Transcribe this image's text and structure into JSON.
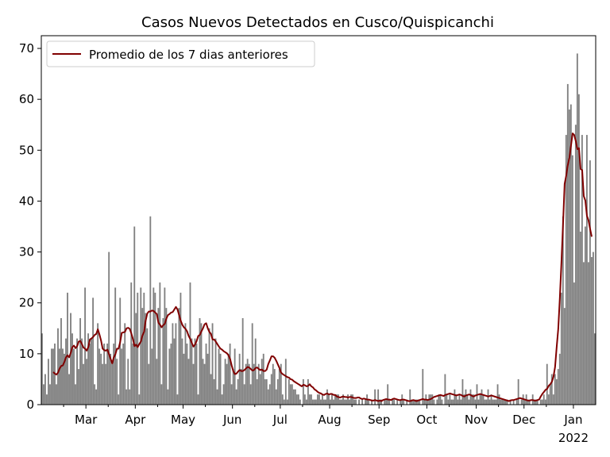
{
  "chart_data": {
    "type": "bar",
    "title": "Casos Nuevos Detectados en Cusco/Quispicanchi",
    "xlabel": "",
    "ylabel": "",
    "ylim": [
      0,
      72.5
    ],
    "y_ticks": [
      0,
      10,
      20,
      30,
      40,
      50,
      60,
      70
    ],
    "x_ticks": [
      "Mar",
      "Apr",
      "May",
      "Jun",
      "Jul",
      "Aug",
      "Sep",
      "Oct",
      "Nov",
      "Dec",
      "Jan"
    ],
    "x_year_label": "2022",
    "grid": false,
    "legend_position": "upper-left",
    "start_date": "2021-02-01",
    "series": [
      {
        "kind": "bar",
        "color": "#808080",
        "values": [
          14,
          4,
          6,
          2,
          9,
          4,
          11,
          11,
          12,
          4,
          15,
          11,
          17,
          11,
          10,
          13,
          22,
          6,
          18,
          14,
          11,
          4,
          13,
          7,
          17,
          13,
          8,
          23,
          9,
          14,
          12,
          13,
          21,
          4,
          3,
          16,
          11,
          10,
          8,
          12,
          8,
          12,
          30,
          10,
          8,
          12,
          23,
          9,
          2,
          21,
          11,
          12,
          16,
          3,
          9,
          3,
          24,
          12,
          35,
          18,
          22,
          2,
          23,
          19,
          22,
          18,
          15,
          8,
          37,
          11,
          23,
          22,
          9,
          19,
          24,
          4,
          17,
          23,
          19,
          3,
          11,
          12,
          16,
          13,
          16,
          2,
          19,
          22,
          13,
          10,
          16,
          12,
          9,
          24,
          13,
          8,
          13,
          12,
          2,
          17,
          16,
          9,
          8,
          12,
          10,
          15,
          6,
          16,
          5,
          13,
          3,
          11,
          10,
          2,
          4,
          9,
          8,
          10,
          12,
          4,
          7,
          11,
          3,
          5,
          10,
          7,
          17,
          4,
          8,
          9,
          8,
          4,
          16,
          8,
          13,
          5,
          8,
          6,
          9,
          10,
          5,
          5,
          3,
          4,
          6,
          8,
          7,
          3,
          5,
          7,
          8,
          2,
          1,
          9,
          1,
          5,
          4,
          4,
          3,
          3,
          2,
          2,
          1,
          0,
          5,
          2,
          1,
          5,
          2,
          2,
          1,
          1,
          1,
          2,
          2,
          1,
          2,
          1,
          1,
          3,
          2,
          1,
          2,
          1,
          2,
          2,
          2,
          1,
          1,
          2,
          1,
          1,
          2,
          1,
          2,
          2,
          1,
          1,
          0,
          1,
          0,
          1,
          0,
          1,
          2,
          1,
          0,
          1,
          0,
          3,
          0,
          3,
          1,
          1,
          0,
          1,
          1,
          4,
          1,
          0,
          1,
          1,
          0,
          1,
          0,
          1,
          2,
          1,
          0,
          1,
          0,
          3,
          1,
          1,
          1,
          1,
          1,
          1,
          0,
          7,
          1,
          2,
          1,
          2,
          2,
          2,
          1,
          0,
          1,
          2,
          2,
          1,
          0,
          6,
          2,
          1,
          2,
          1,
          1,
          3,
          2,
          1,
          2,
          1,
          5,
          2,
          3,
          2,
          1,
          3,
          2,
          2,
          1,
          4,
          1,
          2,
          3,
          2,
          1,
          1,
          3,
          1,
          2,
          1,
          1,
          1,
          4,
          2,
          1,
          1,
          1,
          1,
          1,
          0,
          1,
          0,
          1,
          0,
          1,
          5,
          0,
          1,
          2,
          1,
          2,
          1,
          1,
          0,
          2,
          1,
          1,
          1,
          0,
          1,
          1,
          2,
          1,
          8,
          2,
          4,
          6,
          2,
          6,
          5,
          7,
          10,
          22,
          37,
          19,
          53,
          63,
          58,
          59,
          49,
          24,
          55,
          69,
          61,
          34,
          53,
          28,
          35,
          53,
          28,
          48,
          29,
          30,
          14
        ]
      },
      {
        "kind": "line",
        "name": "Promedio de los 7 dias anteriores",
        "color": "#800000",
        "values": [
          6.4,
          6.1,
          5.9,
          6.3,
          7.1,
          7.6,
          7.7,
          8.4,
          9.3,
          9.7,
          9.3,
          10.2,
          11.3,
          11.6,
          11.1,
          11.5,
          12.4,
          12.5,
          11.9,
          11.2,
          11.0,
          10.6,
          11.3,
          12.8,
          13.0,
          13.3,
          13.7,
          13.9,
          14.8,
          13.8,
          12.6,
          11.0,
          10.7,
          10.6,
          10.8,
          9.9,
          9.0,
          8.1,
          9.3,
          9.9,
          11.0,
          11.0,
          12.3,
          14.1,
          14.2,
          14.3,
          15.0,
          15.1,
          14.9,
          14.0,
          12.9,
          11.5,
          11.8,
          11.3,
          11.9,
          12.4,
          13.6,
          14.3,
          16.5,
          17.9,
          18.3,
          18.3,
          18.5,
          18.4,
          18.1,
          17.8,
          16.1,
          15.7,
          15.2,
          15.6,
          15.9,
          16.9,
          17.6,
          17.8,
          18.1,
          18.2,
          18.7,
          19.2,
          18.7,
          17.6,
          16.5,
          15.7,
          15.2,
          14.9,
          14.4,
          13.5,
          12.9,
          12.1,
          11.4,
          11.8,
          12.5,
          13.5,
          13.7,
          14.4,
          15.0,
          15.8,
          16.0,
          15.0,
          14.3,
          13.9,
          12.8,
          12.8,
          12.4,
          11.9,
          11.4,
          11.0,
          10.8,
          10.5,
          10.3,
          10.1,
          9.7,
          9.0,
          7.7,
          6.6,
          6.0,
          6.1,
          6.5,
          6.8,
          6.6,
          6.6,
          6.8,
          7.1,
          7.4,
          7.3,
          7.0,
          6.7,
          6.8,
          7.2,
          7.3,
          7.0,
          6.8,
          6.9,
          6.6,
          6.6,
          6.9,
          8.0,
          8.7,
          9.5,
          9.5,
          9.2,
          8.6,
          7.9,
          7.2,
          6.3,
          6.0,
          5.8,
          5.6,
          5.4,
          5.3,
          5.0,
          4.9,
          4.6,
          4.4,
          4.2,
          4.0,
          3.8,
          3.6,
          3.9,
          3.8,
          3.6,
          3.7,
          4.0,
          3.6,
          3.4,
          3.0,
          2.8,
          2.5,
          2.3,
          2.2,
          2.0,
          1.9,
          2.1,
          2.2,
          2.0,
          2.1,
          2.1,
          1.9,
          1.9,
          1.6,
          1.5,
          1.4,
          1.5,
          1.6,
          1.5,
          1.5,
          1.4,
          1.5,
          1.5,
          1.4,
          1.3,
          1.3,
          1.4,
          1.4,
          1.2,
          1.1,
          1.2,
          1.1,
          1.0,
          1.0,
          0.9,
          0.8,
          0.8,
          0.9,
          0.8,
          0.7,
          0.8,
          0.7,
          0.9,
          1.0,
          1.1,
          1.0,
          1.0,
          0.9,
          1.1,
          1.2,
          1.1,
          1.0,
          0.9,
          0.9,
          1.0,
          1.0,
          0.9,
          0.8,
          0.7,
          0.7,
          0.8,
          0.9,
          0.8,
          0.7,
          0.8,
          0.9,
          1.0,
          1.1,
          1.0,
          1.0,
          0.9,
          1.0,
          1.1,
          1.3,
          1.5,
          1.6,
          1.7,
          1.8,
          1.9,
          1.8,
          1.7,
          1.9,
          2.0,
          2.1,
          2.2,
          2.1,
          2.0,
          1.9,
          1.8,
          1.9,
          2.0,
          1.9,
          1.7,
          1.6,
          1.8,
          1.9,
          2.0,
          1.9,
          1.7,
          1.6,
          1.8,
          1.9,
          2.0,
          2.1,
          2.0,
          1.9,
          1.8,
          1.7,
          1.6,
          1.7,
          1.8,
          1.7,
          1.6,
          1.5,
          1.4,
          1.3,
          1.2,
          1.1,
          1.0,
          0.9,
          0.8,
          0.7,
          0.8,
          0.9,
          0.9,
          1.0,
          1.1,
          1.2,
          1.3,
          1.2,
          1.1,
          1.0,
          0.9,
          0.8,
          0.8,
          0.9,
          0.9,
          0.8,
          0.8,
          0.9,
          1.0,
          1.6,
          2.1,
          2.5,
          2.9,
          3.1,
          3.7,
          4.0,
          4.5,
          5.5,
          7.4,
          11.3,
          14.9,
          21.0,
          28.0,
          35.5,
          43.4,
          45.0,
          47.1,
          48.5,
          50.9,
          53.3,
          53.0,
          51.8,
          50.2,
          50.4,
          46.3,
          46.1,
          41.0,
          40.1,
          37.1,
          36.2,
          34.5,
          33.0
        ]
      }
    ]
  }
}
